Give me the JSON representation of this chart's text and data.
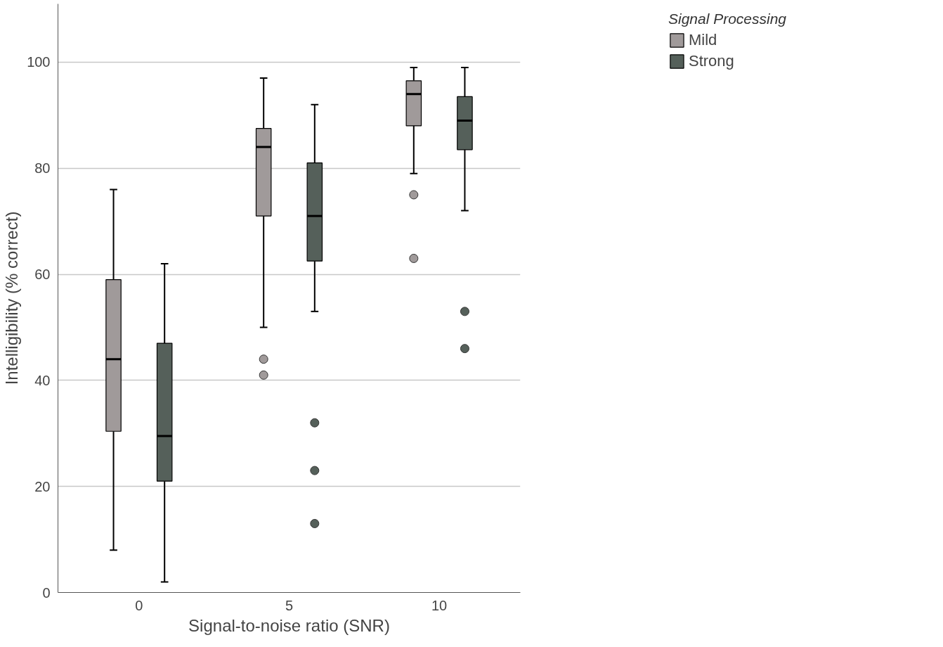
{
  "chart_data": {
    "type": "box",
    "xlabel": "Signal-to-noise ratio (SNR)",
    "ylabel": "Intelligibility (% correct)",
    "legend_title": "Signal Processing",
    "categories": [
      "0",
      "5",
      "10"
    ],
    "ylim": [
      0,
      111
    ],
    "yticks": [
      0,
      20,
      40,
      60,
      80,
      100
    ],
    "grid": "y",
    "legend": "top right",
    "marker": "circle",
    "series": [
      {
        "name": "Mild",
        "color": "#a09a9a",
        "boxes": [
          {
            "low": 8,
            "q1": 30.4,
            "median": 44,
            "q3": 59,
            "high": 76
          },
          {
            "low": 50,
            "q1": 71,
            "median": 84,
            "q3": 87.5,
            "high": 97,
            "outliers": [
              44,
              41
            ]
          },
          {
            "low": 79,
            "q1": 88,
            "median": 94,
            "q3": 96.5,
            "high": 99,
            "outliers": [
              75,
              63
            ]
          }
        ]
      },
      {
        "name": "Strong",
        "color": "#55605a",
        "boxes": [
          {
            "low": 2,
            "q1": 21,
            "median": 29.5,
            "q3": 47,
            "high": 62
          },
          {
            "low": 53,
            "q1": 62.5,
            "median": 71,
            "q3": 81,
            "high": 92,
            "outliers": [
              32,
              23,
              13
            ]
          },
          {
            "low": 72,
            "q1": 83.5,
            "median": 89,
            "q3": 93.5,
            "high": 99,
            "outliers": [
              53,
              46
            ]
          }
        ]
      }
    ]
  }
}
